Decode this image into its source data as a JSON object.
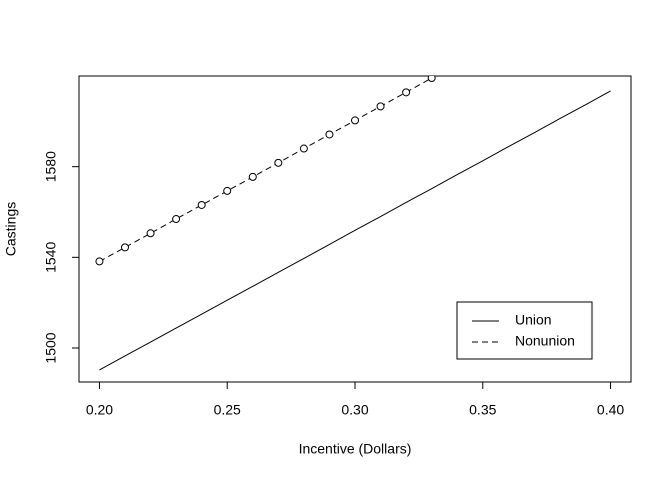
{
  "chart_data": {
    "type": "line",
    "x_label": "Incentive (Dollars)",
    "y_label": "Castings",
    "xlim": [
      0.192,
      0.408
    ],
    "ylim": [
      1485,
      1620
    ],
    "xticks": [
      {
        "value": 0.2,
        "label": "0.20"
      },
      {
        "value": 0.25,
        "label": "0.25"
      },
      {
        "value": 0.3,
        "label": "0.30"
      },
      {
        "value": 0.35,
        "label": "0.35"
      },
      {
        "value": 0.4,
        "label": "0.40"
      }
    ],
    "yticks": [
      1500,
      1540,
      1580
    ],
    "legend": "bottomright",
    "series": [
      {
        "name": "Union",
        "color": "#000000",
        "linestyle": "solid",
        "x": [
          0.2,
          0.21,
          0.22,
          0.23,
          0.24,
          0.25,
          0.26,
          0.27,
          0.28,
          0.29,
          0.3,
          0.31,
          0.32,
          0.33,
          0.34,
          0.35,
          0.36,
          0.37,
          0.38,
          0.39,
          0.4
        ],
        "values": [
          1490.3,
          1496.5,
          1502.6,
          1508.8,
          1514.9,
          1521.1,
          1527.2,
          1533.4,
          1539.5,
          1545.7,
          1551.9,
          1558.0,
          1564.2,
          1570.3,
          1576.5,
          1582.6,
          1588.8,
          1594.9,
          1601.1,
          1607.2,
          1613.4
        ]
      },
      {
        "name": "Nonunion",
        "color": "#000000",
        "linestyle": "dashed",
        "marker": "circle",
        "x": [
          0.2,
          0.21,
          0.22,
          0.23,
          0.24,
          0.25,
          0.26,
          0.27,
          0.28,
          0.29,
          0.3,
          0.31,
          0.32,
          0.33
        ],
        "values": [
          1538.2,
          1544.4,
          1550.6,
          1556.9,
          1563.1,
          1569.3,
          1575.5,
          1581.7,
          1588.0,
          1594.2,
          1600.4,
          1606.6,
          1612.8,
          1619.1
        ]
      }
    ]
  }
}
